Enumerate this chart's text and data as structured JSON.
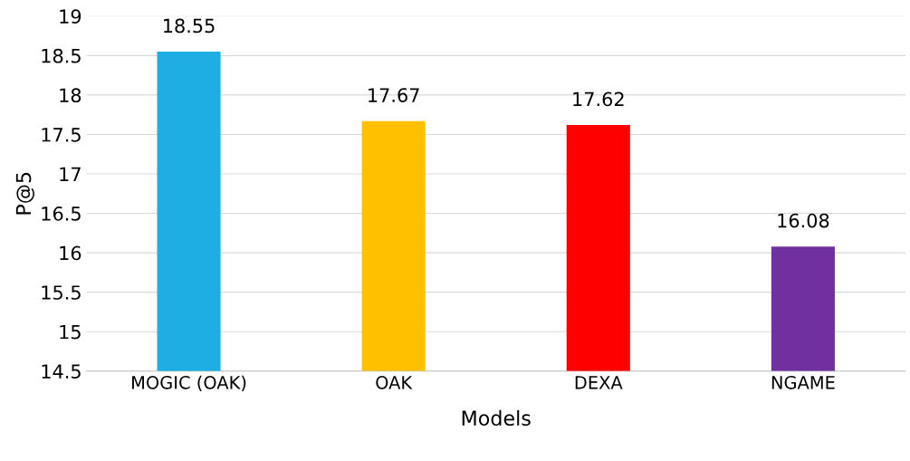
{
  "chart_data": {
    "type": "bar",
    "xlabel": "Models",
    "ylabel": "P@5",
    "categories": [
      "MOGIC (OAK)",
      "OAK",
      "DEXA",
      "NGAME"
    ],
    "values": [
      18.55,
      17.67,
      17.62,
      16.08
    ],
    "colors": [
      "#1eaee4",
      "#ffc000",
      "#ff0000",
      "#7030a0"
    ],
    "ylim": [
      14.5,
      19
    ],
    "yticks": [
      14.5,
      15,
      15.5,
      16,
      16.5,
      17,
      17.5,
      18,
      18.5,
      19
    ],
    "grid": "y",
    "data_labels": true
  }
}
